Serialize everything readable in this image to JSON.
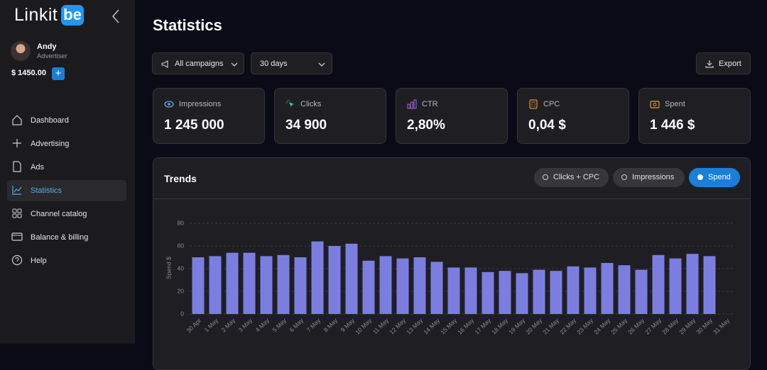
{
  "sidebar": {
    "logo": "Linkit",
    "logo_badge": "be",
    "user": {
      "name": "Andy",
      "role": "Advertiser",
      "balance": "$ 1450.00"
    },
    "nav": [
      "Dashboard",
      "Advertising",
      "Ads",
      "Statistics",
      "Channel catalog",
      "Balance & billing",
      "Help"
    ]
  },
  "header": {
    "title": "Statistics",
    "filters": [
      "All campaigns",
      "30 days"
    ],
    "export": "Export"
  },
  "metrics": [
    {
      "label": "Impressions",
      "value": "1 245 000"
    },
    {
      "label": "Clicks",
      "value": "34 900"
    },
    {
      "label": "CTR",
      "value": "2,80%"
    },
    {
      "label": "CPC",
      "value": "0,04 $"
    },
    {
      "label": "Spent",
      "value": "1 446 $"
    }
  ],
  "trends": {
    "title": "Trends",
    "toggles": [
      "Clicks + CPC",
      "Impressions",
      "Spend"
    ]
  },
  "chart_data": {
    "type": "bar",
    "ylabel": "Spend $",
    "categories": [
      "30 Apr",
      "1 May",
      "2 May",
      "3 May",
      "4 May",
      "5 May",
      "6 May",
      "7 May",
      "8 May",
      "9 May",
      "10 May",
      "11 May",
      "12 May",
      "13 May",
      "14 May",
      "15 May",
      "16 May",
      "17 May",
      "18 May",
      "19 May",
      "20 May",
      "21 May",
      "22 May",
      "23 May",
      "24 May",
      "25 May",
      "26 May",
      "27 May",
      "28 May",
      "29 May",
      "30 May",
      "31 May"
    ],
    "values": [
      50,
      51,
      54,
      54,
      51,
      52,
      50,
      64,
      60,
      62,
      47,
      51,
      49,
      50,
      46,
      41,
      41,
      37,
      38,
      36,
      39,
      38,
      42,
      41,
      45,
      43,
      39,
      52,
      49,
      53,
      51,
      null
    ],
    "color": "#7b7ee0",
    "ylim": [
      0,
      80
    ],
    "yticks": [
      0,
      20,
      40,
      60,
      80
    ],
    "grid": true
  }
}
